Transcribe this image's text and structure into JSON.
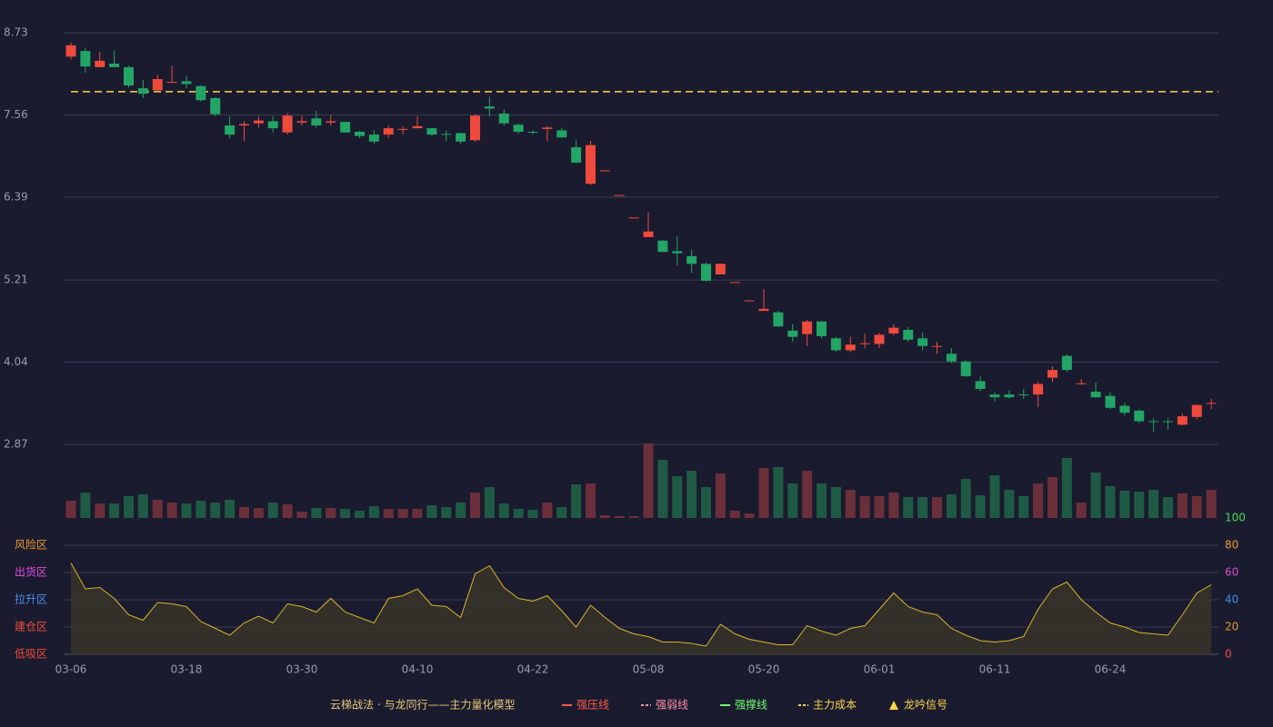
{
  "chart_data": {
    "type": "candlestick",
    "categories": [
      "03-06",
      null,
      null,
      null,
      null,
      null,
      null,
      null,
      "03-18",
      null,
      null,
      null,
      null,
      null,
      null,
      null,
      "03-30",
      null,
      null,
      null,
      null,
      null,
      null,
      null,
      "04-10",
      null,
      null,
      null,
      null,
      null,
      null,
      null,
      "04-22",
      null,
      null,
      null,
      null,
      null,
      null,
      null,
      "05-08",
      null,
      null,
      null,
      null,
      null,
      null,
      null,
      "05-20",
      null,
      null,
      null,
      null,
      null,
      null,
      null,
      "06-01",
      null,
      null,
      null,
      null,
      null,
      null,
      null,
      "06-11",
      null,
      null,
      null,
      null,
      null,
      null,
      null,
      "06-24",
      null,
      null,
      null,
      null,
      null,
      null,
      null
    ],
    "open": [
      8.39,
      8.47,
      8.24,
      8.29,
      8.24,
      7.94,
      7.91,
      8.02,
      8.04,
      7.97,
      7.8,
      7.41,
      7.41,
      7.44,
      7.47,
      7.31,
      7.45,
      7.51,
      7.45,
      7.46,
      7.32,
      7.28,
      7.28,
      7.35,
      7.37,
      7.37,
      7.29,
      7.3,
      7.2,
      7.68,
      7.58,
      7.42,
      7.32,
      7.36,
      7.34,
      7.1,
      6.58,
      6.76,
      6.41,
      6.09,
      5.82,
      5.77,
      5.62,
      5.55,
      5.44,
      5.29,
      5.17,
      4.91,
      4.77,
      4.75,
      4.49,
      4.44,
      4.62,
      4.38,
      4.21,
      4.3,
      4.3,
      4.45,
      4.5,
      4.38,
      4.26,
      4.16,
      4.05,
      3.77,
      3.58,
      3.58,
      3.58,
      3.58,
      3.82,
      4.13,
      3.73,
      3.62,
      3.56,
      3.42,
      3.35,
      3.2,
      3.2,
      3.15,
      3.26,
      3.45
    ],
    "close": [
      8.55,
      8.25,
      8.33,
      8.24,
      7.98,
      7.86,
      8.07,
      8.03,
      8.0,
      7.77,
      7.57,
      7.28,
      7.43,
      7.48,
      7.37,
      7.55,
      7.47,
      7.41,
      7.47,
      7.31,
      7.26,
      7.18,
      7.37,
      7.36,
      7.4,
      7.28,
      7.28,
      7.18,
      7.55,
      7.65,
      7.44,
      7.32,
      7.31,
      7.38,
      7.24,
      6.88,
      7.13,
      6.77,
      6.42,
      6.1,
      5.9,
      5.61,
      5.59,
      5.44,
      5.2,
      5.44,
      5.18,
      4.92,
      4.8,
      4.55,
      4.4,
      4.62,
      4.41,
      4.21,
      4.29,
      4.31,
      4.43,
      4.53,
      4.36,
      4.27,
      4.27,
      4.05,
      3.84,
      3.66,
      3.54,
      3.54,
      3.57,
      3.73,
      3.93,
      3.93,
      3.74,
      3.54,
      3.39,
      3.32,
      3.2,
      3.19,
      3.19,
      3.27,
      3.43,
      3.46
    ],
    "high": [
      8.59,
      8.52,
      8.46,
      8.48,
      8.26,
      8.06,
      8.13,
      8.26,
      8.12,
      7.98,
      7.81,
      7.54,
      7.47,
      7.54,
      7.54,
      7.59,
      7.55,
      7.62,
      7.56,
      7.46,
      7.33,
      7.34,
      7.41,
      7.4,
      7.54,
      7.38,
      7.34,
      7.31,
      7.57,
      7.82,
      7.64,
      7.44,
      7.34,
      7.4,
      7.38,
      7.2,
      7.19,
      6.77,
      6.42,
      6.1,
      6.17,
      5.78,
      5.83,
      5.64,
      5.46,
      5.44,
      5.18,
      4.92,
      5.08,
      4.77,
      4.58,
      4.64,
      4.63,
      4.4,
      4.4,
      4.45,
      4.46,
      4.58,
      4.54,
      4.46,
      4.33,
      4.24,
      4.07,
      3.84,
      3.61,
      3.64,
      3.66,
      3.76,
      3.98,
      4.15,
      3.8,
      3.75,
      3.61,
      3.46,
      3.37,
      3.24,
      3.24,
      3.31,
      3.44,
      3.52
    ],
    "low": [
      8.35,
      8.16,
      8.24,
      8.24,
      7.95,
      7.8,
      7.9,
      8.02,
      7.94,
      7.75,
      7.54,
      7.23,
      7.19,
      7.38,
      7.31,
      7.28,
      7.41,
      7.38,
      7.41,
      7.31,
      7.23,
      7.15,
      7.23,
      7.28,
      7.37,
      7.26,
      7.19,
      7.15,
      7.18,
      7.54,
      7.41,
      7.29,
      7.28,
      7.19,
      7.23,
      6.87,
      6.56,
      6.76,
      6.41,
      6.09,
      5.82,
      5.61,
      5.42,
      5.31,
      5.19,
      5.29,
      5.17,
      4.91,
      4.77,
      4.54,
      4.33,
      4.27,
      4.38,
      4.19,
      4.18,
      4.24,
      4.24,
      4.42,
      4.33,
      4.21,
      4.16,
      4.03,
      3.83,
      3.63,
      3.48,
      3.52,
      3.52,
      3.4,
      3.76,
      3.9,
      3.72,
      3.53,
      3.37,
      3.28,
      3.17,
      3.05,
      3.08,
      3.14,
      3.23,
      3.37
    ],
    "ylim": [
      2.87,
      8.73
    ],
    "yticks": [
      8.73,
      7.56,
      6.39,
      5.21,
      4.04,
      2.87
    ],
    "up_color": "#ef4a3c",
    "down_color": "#22a565",
    "cost_value": 7.89,
    "volume": [
      19,
      28,
      16,
      16,
      24,
      26,
      20,
      17,
      16,
      19,
      17,
      20,
      12,
      11,
      17,
      15,
      7,
      11,
      11,
      10,
      8,
      13,
      10,
      10,
      10,
      14,
      12,
      17,
      28,
      34,
      16,
      10,
      9,
      17,
      12,
      37,
      38,
      3,
      2,
      2,
      82,
      64,
      46,
      52,
      34,
      49,
      8,
      5,
      55,
      56,
      38,
      52,
      38,
      34,
      31,
      24,
      24,
      28,
      23,
      23,
      23,
      26,
      43,
      25,
      47,
      31,
      24,
      38,
      45,
      66,
      17,
      50,
      35,
      30,
      29,
      31,
      23,
      27,
      24,
      31
    ],
    "volume_ylim": [
      0,
      82
    ],
    "volume_up_color": "#6b2f3a",
    "volume_down_color": "#1f5a44",
    "oscillator": [
      67,
      48,
      49,
      41,
      29,
      25,
      38,
      37,
      35,
      24,
      19,
      14,
      23,
      28,
      23,
      37,
      35,
      31,
      41,
      31,
      27,
      23,
      41,
      43,
      48,
      36,
      35,
      27,
      59,
      65,
      49,
      41,
      39,
      43,
      32,
      20,
      36,
      27,
      19,
      15,
      13,
      9,
      9,
      8,
      6,
      22,
      15,
      11,
      9,
      7,
      7,
      21,
      17,
      14,
      19,
      21,
      33,
      45,
      35,
      31,
      29,
      19,
      14,
      10,
      9,
      10,
      13,
      33,
      48,
      53,
      40,
      31,
      23,
      20,
      16,
      15,
      14,
      29,
      45,
      51
    ],
    "oscillator_color": "#d9b52a",
    "oscillator_ylim": [
      0,
      100
    ],
    "oscillator_yticks": [
      100,
      80,
      60,
      40,
      20,
      0
    ],
    "oscillator_tick_colors": [
      "#3ddc5a",
      "#e89a2c",
      "#d94fd0",
      "#3d8df0",
      "#e89a2c",
      "#ef4a3c"
    ],
    "zones": [
      {
        "label": "风险区",
        "value": 80,
        "color": "#e89a2c"
      },
      {
        "label": "出货区",
        "value": 60,
        "color": "#e04ce0"
      },
      {
        "label": "拉升区",
        "value": 40,
        "color": "#4d8ff0"
      },
      {
        "label": "建仓区",
        "value": 20,
        "color": "#ef4a3c"
      },
      {
        "label": "低吸区",
        "value": 0,
        "color": "#ef4a3c"
      }
    ],
    "legend_title": "云梯战法 · 与龙同行——主力量化模型",
    "legend": [
      {
        "name": "强压线",
        "color": "#ff5a4a",
        "style": "solid"
      },
      {
        "name": "强弱线",
        "color": "#ff8fa8",
        "style": "dashed"
      },
      {
        "name": "强撑线",
        "color": "#6dff6d",
        "style": "solid"
      },
      {
        "name": "主力成本",
        "color": "#ffd54a",
        "style": "dashed"
      },
      {
        "name": "龙吟信号",
        "color": "#ffd54a",
        "style": "triangle"
      }
    ]
  }
}
